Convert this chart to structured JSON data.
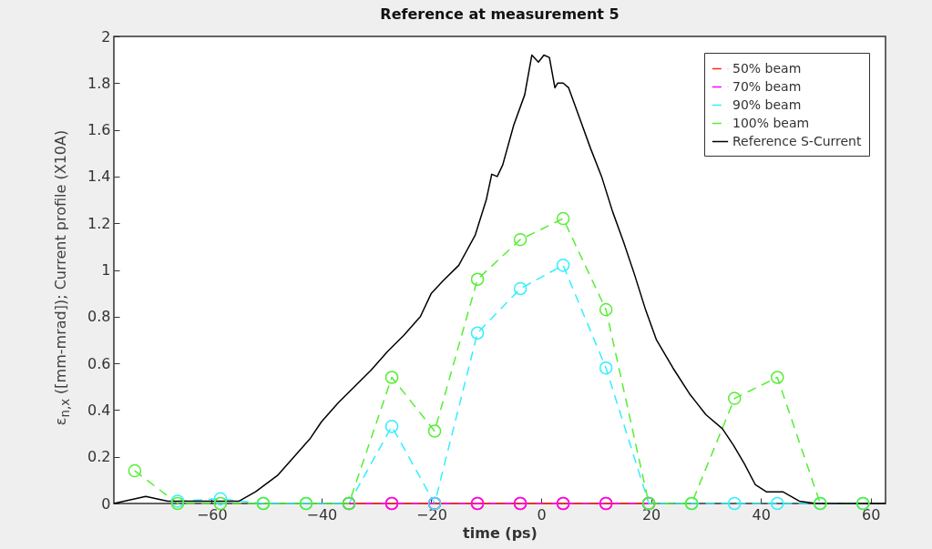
{
  "chart_data": {
    "type": "line",
    "title": "Reference at measurement 5",
    "xlabel": "time (ps)",
    "ylabel": "ε$_{n,x}$ ([mm-mrad]); Current profile (X10A)",
    "xlim": [
      -77.8,
      62.7
    ],
    "xticks": [
      -60,
      -40,
      -20,
      0,
      20,
      40,
      60
    ],
    "ylim": [
      0,
      2
    ],
    "yticks": [
      0,
      0.2,
      0.4,
      0.6,
      0.8,
      1,
      1.2,
      1.4,
      1.6,
      1.8,
      2
    ],
    "legend": "top right",
    "grid": false,
    "series": [
      {
        "name": "50% beam",
        "type": "line",
        "color": "#ff2a1a",
        "marker": "circle",
        "line_style": "dashed",
        "x": [
          -35,
          -27.2,
          -19.4,
          -11.6,
          -3.8,
          4,
          11.8,
          19.6
        ],
        "values": [
          0,
          0,
          0,
          0,
          0,
          0,
          0,
          0
        ]
      },
      {
        "name": "70% beam",
        "type": "line",
        "color": "#ff00ff",
        "marker": "circle",
        "line_style": "dashed",
        "x": [
          -35,
          -27.2,
          -19.4,
          -11.6,
          -3.8,
          4,
          11.8,
          19.6
        ],
        "values": [
          0,
          0,
          0,
          0,
          0,
          0,
          0,
          0
        ]
      },
      {
        "name": "90% beam",
        "type": "line",
        "color": "#33eeff",
        "marker": "circle",
        "line_style": "dashed",
        "x": [
          -66.2,
          -58.4,
          -50.6,
          -42.8,
          -35,
          -27.2,
          -19.4,
          -11.6,
          -3.8,
          4,
          11.8,
          19.6,
          27.4,
          35.2,
          43,
          50.8,
          58.6
        ],
        "values": [
          0.01,
          0.02,
          0,
          0,
          0,
          0.33,
          0,
          0.73,
          0.92,
          1.02,
          0.58,
          0,
          0,
          0,
          0,
          0,
          0
        ]
      },
      {
        "name": "100% beam",
        "type": "line",
        "color": "#55ee33",
        "marker": "circle",
        "line_style": "dashed",
        "x": [
          -74,
          -66.2,
          -58.4,
          -50.6,
          -42.8,
          -35,
          -27.2,
          -19.4,
          -11.6,
          -3.8,
          4,
          11.8,
          19.6,
          27.4,
          35.2,
          43,
          50.8,
          58.6
        ],
        "values": [
          0.14,
          0,
          0,
          0,
          0,
          0,
          0.54,
          0.31,
          0.96,
          1.13,
          1.22,
          0.83,
          0,
          0,
          0.45,
          0.54,
          0,
          0
        ]
      },
      {
        "name": "Reference S-Current",
        "type": "line",
        "color": "#000000",
        "marker": "none",
        "line_style": "solid",
        "x": [
          -77.8,
          -72,
          -68,
          -60,
          -55,
          -52,
          -48,
          -45,
          -42,
          -40,
          -37,
          -34,
          -31,
          -28,
          -25,
          -22,
          -20,
          -18,
          -15,
          -12,
          -10,
          -9,
          -8,
          -7,
          -5,
          -3,
          -1.7,
          -0.5,
          0.5,
          1.5,
          2.5,
          3,
          4,
          5,
          7,
          9,
          11,
          13,
          15,
          17,
          19,
          21,
          24,
          27,
          30,
          33,
          35,
          37,
          39,
          41,
          44,
          47,
          50,
          55,
          62.7
        ],
        "values": [
          0,
          0.03,
          0.01,
          0.01,
          0.01,
          0.05,
          0.12,
          0.2,
          0.28,
          0.35,
          0.43,
          0.5,
          0.57,
          0.65,
          0.72,
          0.8,
          0.9,
          0.95,
          1.02,
          1.15,
          1.3,
          1.41,
          1.4,
          1.45,
          1.62,
          1.75,
          1.92,
          1.89,
          1.92,
          1.91,
          1.78,
          1.8,
          1.8,
          1.78,
          1.65,
          1.52,
          1.4,
          1.25,
          1.12,
          0.98,
          0.83,
          0.7,
          0.58,
          0.47,
          0.38,
          0.32,
          0.25,
          0.17,
          0.08,
          0.05,
          0.05,
          0.01,
          0,
          0,
          0
        ]
      }
    ]
  }
}
